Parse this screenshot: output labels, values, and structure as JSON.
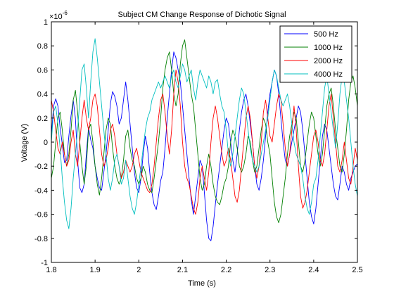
{
  "chart_data": {
    "type": "line",
    "title": "Subject CM Change Response of Dichotic Signal",
    "xlabel": "Time (s)",
    "ylabel": "Voltage (V)",
    "y_exponent_label": "×10",
    "y_exponent_power": "-6",
    "xlim": [
      1.8,
      2.5
    ],
    "ylim": [
      -1,
      1
    ],
    "x_ticks": [
      1.8,
      1.9,
      2.0,
      2.1,
      2.2,
      2.3,
      2.4,
      2.5
    ],
    "x_tick_labels": [
      "1.8",
      "1.9",
      "2",
      "2.1",
      "2.2",
      "2.3",
      "2.4",
      "2.5"
    ],
    "y_ticks": [
      -1,
      -0.8,
      -0.6,
      -0.4,
      -0.2,
      0,
      0.2,
      0.4,
      0.6,
      0.8,
      1
    ],
    "y_tick_labels": [
      "-1",
      "-0.8",
      "-0.6",
      "-0.4",
      "-0.2",
      "0",
      "0.2",
      "0.4",
      "0.6",
      "0.8",
      "1"
    ],
    "grid": false,
    "legend_position": "top-right",
    "series": [
      {
        "name": "500 Hz",
        "color": "#0000ff",
        "x": [
          1.8,
          1.805,
          1.81,
          1.815,
          1.82,
          1.825,
          1.83,
          1.835,
          1.84,
          1.845,
          1.85,
          1.855,
          1.86,
          1.865,
          1.87,
          1.875,
          1.88,
          1.885,
          1.89,
          1.895,
          1.9,
          1.905,
          1.91,
          1.915,
          1.92,
          1.925,
          1.93,
          1.935,
          1.94,
          1.945,
          1.95,
          1.955,
          1.96,
          1.965,
          1.97,
          1.975,
          1.98,
          1.985,
          1.99,
          1.995,
          2.0,
          2.005,
          2.01,
          2.015,
          2.02,
          2.025,
          2.03,
          2.035,
          2.04,
          2.045,
          2.05,
          2.055,
          2.06,
          2.065,
          2.07,
          2.075,
          2.08,
          2.085,
          2.09,
          2.095,
          2.1,
          2.105,
          2.11,
          2.115,
          2.12,
          2.125,
          2.13,
          2.135,
          2.14,
          2.145,
          2.15,
          2.155,
          2.16,
          2.165,
          2.17,
          2.175,
          2.18,
          2.185,
          2.19,
          2.195,
          2.2,
          2.205,
          2.21,
          2.215,
          2.22,
          2.225,
          2.23,
          2.235,
          2.24,
          2.245,
          2.25,
          2.255,
          2.26,
          2.265,
          2.27,
          2.275,
          2.28,
          2.285,
          2.29,
          2.295,
          2.3,
          2.305,
          2.31,
          2.315,
          2.32,
          2.325,
          2.33,
          2.335,
          2.34,
          2.345,
          2.35,
          2.355,
          2.36,
          2.365,
          2.37,
          2.375,
          2.38,
          2.385,
          2.39,
          2.395,
          2.4,
          2.405,
          2.41,
          2.415,
          2.42,
          2.425,
          2.43,
          2.435,
          2.44,
          2.445,
          2.45,
          2.455,
          2.46,
          2.465,
          2.47,
          2.475,
          2.48,
          2.485,
          2.49,
          2.495,
          2.5
        ],
        "values": [
          0.05,
          0.3,
          0.36,
          0.3,
          0.12,
          -0.02,
          -0.17,
          -0.15,
          0.05,
          0.22,
          0.35,
          0.2,
          -0.15,
          -0.38,
          -0.42,
          -0.35,
          -0.1,
          0.12,
          0.02,
          -0.05,
          -0.2,
          -0.3,
          -0.38,
          -0.4,
          -0.25,
          -0.1,
          0.1,
          0.32,
          0.42,
          0.38,
          0.3,
          0.15,
          0.2,
          0.35,
          0.5,
          0.35,
          0.15,
          -0.05,
          -0.25,
          -0.38,
          -0.42,
          -0.3,
          -0.1,
          0.05,
          -0.05,
          -0.25,
          -0.42,
          -0.52,
          -0.56,
          -0.45,
          -0.32,
          -0.25,
          -0.05,
          0.2,
          0.4,
          0.6,
          0.75,
          0.7,
          0.6,
          0.5,
          0.3,
          0.1,
          -0.1,
          -0.3,
          -0.48,
          -0.6,
          -0.45,
          -0.3,
          -0.15,
          -0.2,
          -0.42,
          -0.65,
          -0.8,
          -0.82,
          -0.7,
          -0.52,
          -0.35,
          -0.2,
          -0.05,
          0.1,
          0.2,
          0.15,
          0.0,
          -0.15,
          -0.25,
          -0.1,
          0.1,
          0.25,
          0.35,
          0.4,
          0.3,
          0.15,
          0.0,
          -0.2,
          -0.35,
          -0.4,
          -0.3,
          -0.15,
          0.05,
          0.25,
          0.4,
          0.5,
          0.6,
          0.55,
          0.4,
          0.2,
          0.0,
          -0.15,
          -0.2,
          -0.1,
          0.0,
          0.1,
          0.2,
          0.3,
          0.25,
          0.1,
          -0.1,
          -0.3,
          -0.5,
          -0.62,
          -0.68,
          -0.55,
          -0.35,
          -0.15,
          0.05,
          0.15,
          0.1,
          -0.05,
          -0.2,
          -0.35,
          -0.45,
          -0.48,
          -0.35,
          -0.2,
          -0.25,
          -0.35,
          -0.4,
          -0.3,
          -0.25,
          -0.2,
          -0.18
        ]
      },
      {
        "name": "1000 Hz",
        "color": "#007f00",
        "x": [
          1.8,
          1.805,
          1.81,
          1.815,
          1.82,
          1.825,
          1.83,
          1.835,
          1.84,
          1.845,
          1.85,
          1.855,
          1.86,
          1.865,
          1.87,
          1.875,
          1.88,
          1.885,
          1.89,
          1.895,
          1.9,
          1.905,
          1.91,
          1.915,
          1.92,
          1.925,
          1.93,
          1.935,
          1.94,
          1.945,
          1.95,
          1.955,
          1.96,
          1.965,
          1.97,
          1.975,
          1.98,
          1.985,
          1.99,
          1.995,
          2.0,
          2.005,
          2.01,
          2.015,
          2.02,
          2.025,
          2.03,
          2.035,
          2.04,
          2.045,
          2.05,
          2.055,
          2.06,
          2.065,
          2.07,
          2.075,
          2.08,
          2.085,
          2.09,
          2.095,
          2.1,
          2.105,
          2.11,
          2.115,
          2.12,
          2.125,
          2.13,
          2.135,
          2.14,
          2.145,
          2.15,
          2.155,
          2.16,
          2.165,
          2.17,
          2.175,
          2.18,
          2.185,
          2.19,
          2.195,
          2.2,
          2.205,
          2.21,
          2.215,
          2.22,
          2.225,
          2.23,
          2.235,
          2.24,
          2.245,
          2.25,
          2.255,
          2.26,
          2.265,
          2.27,
          2.275,
          2.28,
          2.285,
          2.29,
          2.295,
          2.3,
          2.305,
          2.31,
          2.315,
          2.32,
          2.325,
          2.33,
          2.335,
          2.34,
          2.345,
          2.35,
          2.355,
          2.36,
          2.365,
          2.37,
          2.375,
          2.38,
          2.385,
          2.39,
          2.395,
          2.4,
          2.405,
          2.41,
          2.415,
          2.42,
          2.425,
          2.43,
          2.435,
          2.44,
          2.445,
          2.45,
          2.455,
          2.46,
          2.465,
          2.47,
          2.475,
          2.48,
          2.485,
          2.49,
          2.495,
          2.5
        ],
        "values": [
          -0.3,
          -0.2,
          0.0,
          0.2,
          0.25,
          0.1,
          -0.1,
          -0.2,
          -0.1,
          0.1,
          0.35,
          0.43,
          0.25,
          0.0,
          -0.2,
          -0.35,
          -0.2,
          0.1,
          0.15,
          0.0,
          -0.2,
          -0.35,
          -0.44,
          -0.3,
          -0.1,
          0.1,
          0.2,
          0.15,
          -0.05,
          -0.2,
          -0.3,
          -0.35,
          -0.3,
          -0.15,
          0.05,
          0.1,
          -0.05,
          -0.15,
          -0.2,
          -0.3,
          -0.35,
          -0.3,
          -0.2,
          -0.25,
          -0.35,
          -0.4,
          -0.42,
          -0.3,
          -0.15,
          0.0,
          0.2,
          0.45,
          0.6,
          0.7,
          0.75,
          0.6,
          0.4,
          0.3,
          0.4,
          0.65,
          0.8,
          0.85,
          0.7,
          0.55,
          0.4,
          0.3,
          0.1,
          -0.1,
          -0.3,
          -0.4,
          -0.35,
          -0.2,
          -0.1,
          -0.2,
          -0.35,
          -0.45,
          -0.5,
          -0.52,
          -0.45,
          -0.35,
          -0.3,
          -0.2,
          0.0,
          0.1,
          0.05,
          -0.05,
          -0.2,
          -0.25,
          -0.2,
          -0.1,
          0.05,
          0.0,
          -0.15,
          -0.25,
          -0.2,
          -0.05,
          0.1,
          0.2,
          0.15,
          0.0,
          -0.1,
          -0.3,
          -0.5,
          -0.62,
          -0.67,
          -0.6,
          -0.45,
          -0.3,
          -0.1,
          0.05,
          0.15,
          0.25,
          0.2,
          0.0,
          -0.2,
          -0.25,
          -0.15,
          0.0,
          0.15,
          0.25,
          0.2,
          0.05,
          -0.1,
          -0.2,
          -0.1,
          0.1,
          0.3,
          0.4,
          0.45,
          0.3,
          0.1,
          -0.05,
          -0.2,
          -0.25,
          -0.1,
          0.1,
          0.35,
          0.5,
          0.55,
          0.45,
          0.3
        ]
      },
      {
        "name": "2000 Hz",
        "color": "#ff0000",
        "x": [
          1.8,
          1.805,
          1.81,
          1.815,
          1.82,
          1.825,
          1.83,
          1.835,
          1.84,
          1.845,
          1.85,
          1.855,
          1.86,
          1.865,
          1.87,
          1.875,
          1.88,
          1.885,
          1.89,
          1.895,
          1.9,
          1.905,
          1.91,
          1.915,
          1.92,
          1.925,
          1.93,
          1.935,
          1.94,
          1.945,
          1.95,
          1.955,
          1.96,
          1.965,
          1.97,
          1.975,
          1.98,
          1.985,
          1.99,
          1.995,
          2.0,
          2.005,
          2.01,
          2.015,
          2.02,
          2.025,
          2.03,
          2.035,
          2.04,
          2.045,
          2.05,
          2.055,
          2.06,
          2.065,
          2.07,
          2.075,
          2.08,
          2.085,
          2.09,
          2.095,
          2.1,
          2.105,
          2.11,
          2.115,
          2.12,
          2.125,
          2.13,
          2.135,
          2.14,
          2.145,
          2.15,
          2.155,
          2.16,
          2.165,
          2.17,
          2.175,
          2.18,
          2.185,
          2.19,
          2.195,
          2.2,
          2.205,
          2.21,
          2.215,
          2.22,
          2.225,
          2.23,
          2.235,
          2.24,
          2.245,
          2.25,
          2.255,
          2.26,
          2.265,
          2.27,
          2.275,
          2.28,
          2.285,
          2.29,
          2.295,
          2.3,
          2.305,
          2.31,
          2.315,
          2.32,
          2.325,
          2.33,
          2.335,
          2.34,
          2.345,
          2.35,
          2.355,
          2.36,
          2.365,
          2.37,
          2.375,
          2.38,
          2.385,
          2.39,
          2.395,
          2.4,
          2.405,
          2.41,
          2.415,
          2.42,
          2.425,
          2.43,
          2.435,
          2.44,
          2.445,
          2.45,
          2.455,
          2.46,
          2.465,
          2.47,
          2.475,
          2.48,
          2.485,
          2.49,
          2.495,
          2.5
        ],
        "values": [
          0.35,
          0.25,
          0.1,
          -0.05,
          -0.1,
          0.0,
          -0.1,
          -0.2,
          -0.15,
          0.0,
          0.1,
          -0.1,
          -0.2,
          0.0,
          0.2,
          0.35,
          0.2,
          0.1,
          0.2,
          0.35,
          0.4,
          0.3,
          0.1,
          -0.1,
          -0.2,
          -0.15,
          -0.05,
          0.1,
          0.15,
          0.05,
          -0.1,
          -0.2,
          -0.3,
          -0.25,
          -0.15,
          -0.2,
          -0.25,
          -0.2,
          -0.1,
          -0.05,
          -0.15,
          -0.25,
          -0.3,
          -0.35,
          -0.4,
          -0.42,
          -0.35,
          -0.2,
          0.0,
          0.2,
          0.35,
          0.4,
          0.25,
          0.05,
          -0.1,
          0.1,
          0.4,
          0.6,
          0.5,
          0.3,
          0.0,
          -0.2,
          -0.3,
          -0.35,
          -0.45,
          -0.55,
          -0.6,
          -0.5,
          -0.3,
          -0.2,
          -0.3,
          -0.4,
          -0.25,
          0.0,
          0.2,
          0.3,
          0.2,
          0.05,
          -0.1,
          -0.2,
          -0.15,
          -0.05,
          -0.15,
          -0.3,
          -0.45,
          -0.5,
          -0.4,
          -0.2,
          0.0,
          0.2,
          0.3,
          0.2,
          0.0,
          -0.2,
          -0.3,
          -0.2,
          0.0,
          0.25,
          0.35,
          0.2,
          0.05,
          0.0,
          0.15,
          0.3,
          0.4,
          0.35,
          0.15,
          -0.05,
          -0.2,
          -0.1,
          0.1,
          0.3,
          0.1,
          -0.2,
          -0.45,
          -0.55,
          -0.5,
          -0.4,
          -0.25,
          -0.1,
          0.05,
          0.1,
          0.0,
          -0.15,
          -0.2,
          -0.1,
          0.1,
          0.3,
          0.4,
          0.2,
          0.0,
          -0.2,
          -0.25,
          -0.15,
          0.0,
          -0.15,
          -0.3,
          -0.35,
          -0.2,
          -0.05,
          -0.15
        ]
      },
      {
        "name": "4000 Hz",
        "color": "#00bfbf",
        "x": [
          1.8,
          1.805,
          1.81,
          1.815,
          1.82,
          1.825,
          1.83,
          1.835,
          1.84,
          1.845,
          1.85,
          1.855,
          1.86,
          1.865,
          1.87,
          1.875,
          1.88,
          1.885,
          1.89,
          1.895,
          1.9,
          1.905,
          1.91,
          1.915,
          1.92,
          1.925,
          1.93,
          1.935,
          1.94,
          1.945,
          1.95,
          1.955,
          1.96,
          1.965,
          1.97,
          1.975,
          1.98,
          1.985,
          1.99,
          1.995,
          2.0,
          2.005,
          2.01,
          2.015,
          2.02,
          2.025,
          2.03,
          2.035,
          2.04,
          2.045,
          2.05,
          2.055,
          2.06,
          2.065,
          2.07,
          2.075,
          2.08,
          2.085,
          2.09,
          2.095,
          2.1,
          2.105,
          2.11,
          2.115,
          2.12,
          2.125,
          2.13,
          2.135,
          2.14,
          2.145,
          2.15,
          2.155,
          2.16,
          2.165,
          2.17,
          2.175,
          2.18,
          2.185,
          2.19,
          2.195,
          2.2,
          2.205,
          2.21,
          2.215,
          2.22,
          2.225,
          2.23,
          2.235,
          2.24,
          2.245,
          2.25,
          2.255,
          2.26,
          2.265,
          2.27,
          2.275,
          2.28,
          2.285,
          2.29,
          2.295,
          2.3,
          2.305,
          2.31,
          2.315,
          2.32,
          2.325,
          2.33,
          2.335,
          2.34,
          2.345,
          2.35,
          2.355,
          2.36,
          2.365,
          2.37,
          2.375,
          2.38,
          2.385,
          2.39,
          2.395,
          2.4,
          2.405,
          2.41,
          2.415,
          2.42,
          2.425,
          2.43,
          2.435,
          2.44,
          2.445,
          2.45,
          2.455,
          2.46,
          2.465,
          2.47,
          2.475,
          2.48,
          2.485,
          2.49,
          2.495,
          2.5
        ],
        "values": [
          0.0,
          0.25,
          0.3,
          0.15,
          -0.05,
          -0.3,
          -0.5,
          -0.65,
          -0.72,
          -0.55,
          -0.3,
          -0.1,
          0.1,
          0.35,
          0.6,
          0.65,
          0.45,
          0.2,
          0.5,
          0.75,
          0.86,
          0.7,
          0.5,
          0.3,
          0.1,
          -0.1,
          -0.3,
          -0.4,
          -0.3,
          -0.15,
          -0.1,
          -0.2,
          -0.35,
          -0.3,
          -0.15,
          -0.3,
          -0.45,
          -0.55,
          -0.6,
          -0.5,
          -0.35,
          -0.2,
          -0.05,
          0.1,
          0.2,
          0.25,
          0.35,
          0.4,
          0.45,
          0.5,
          0.45,
          0.5,
          0.55,
          0.5,
          0.45,
          0.55,
          0.6,
          0.5,
          0.45,
          0.55,
          0.65,
          0.6,
          0.5,
          0.55,
          0.6,
          0.45,
          0.35,
          0.5,
          0.6,
          0.55,
          0.5,
          0.45,
          0.55,
          0.5,
          0.4,
          0.5,
          0.52,
          0.4,
          0.3,
          0.25,
          0.1,
          -0.1,
          -0.2,
          -0.1,
          0.05,
          0.2,
          0.35,
          0.45,
          0.4,
          0.25,
          0.1,
          -0.05,
          -0.15,
          -0.2,
          -0.25,
          -0.2,
          -0.1,
          0.0,
          0.1,
          0.2,
          0.35,
          0.5,
          0.6,
          0.55,
          0.45,
          0.35,
          0.3,
          0.35,
          0.4,
          0.3,
          0.15,
          0.0,
          -0.1,
          -0.15,
          -0.2,
          -0.3,
          -0.45,
          -0.55,
          -0.6,
          -0.5,
          -0.35,
          -0.3,
          -0.15,
          0.05,
          0.25,
          0.45,
          0.55,
          0.4,
          0.25,
          0.1,
          -0.05,
          0.15,
          0.4,
          0.55,
          0.5,
          0.35,
          0.2,
          0.0,
          -0.2,
          -0.35,
          -0.45
        ]
      }
    ]
  }
}
